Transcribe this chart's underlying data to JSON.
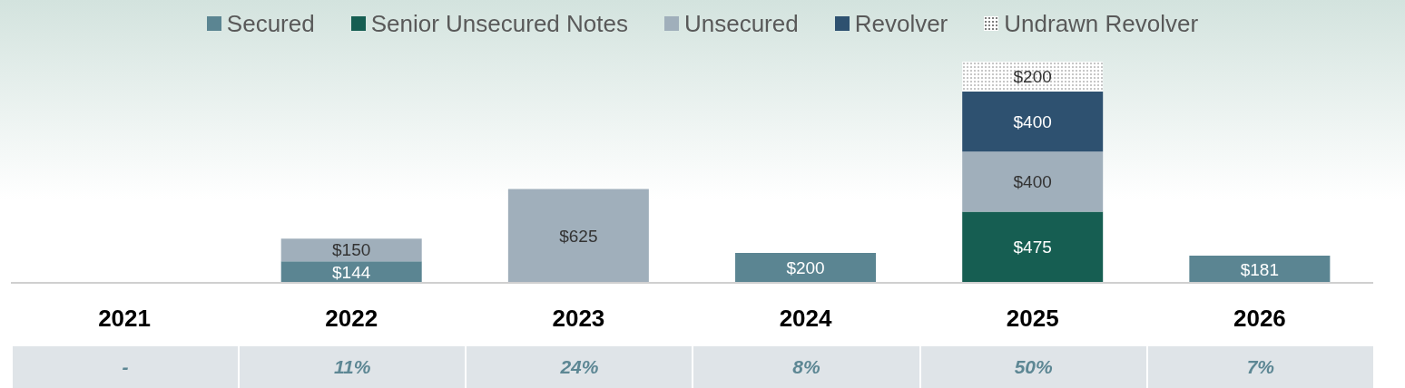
{
  "chart_data": {
    "type": "bar",
    "stacked": true,
    "categories": [
      "2021",
      "2022",
      "2023",
      "2024",
      "2025",
      "2026"
    ],
    "series": [
      {
        "name": "Secured",
        "color": "#5b8592",
        "values": [
          null,
          144,
          null,
          200,
          null,
          181
        ],
        "value_labels": [
          null,
          "$144",
          null,
          "$200",
          null,
          "$181"
        ]
      },
      {
        "name": "Senior Unsecured Notes",
        "color": "#165e52",
        "values": [
          null,
          null,
          null,
          null,
          475,
          null
        ],
        "value_labels": [
          null,
          null,
          null,
          null,
          "$475",
          null
        ]
      },
      {
        "name": "Unsecured",
        "color": "#a0afbb",
        "values": [
          null,
          150,
          625,
          null,
          400,
          null
        ],
        "value_labels": [
          null,
          "$150",
          "$625",
          null,
          "$400",
          null
        ]
      },
      {
        "name": "Revolver",
        "color": "#2e5170",
        "values": [
          null,
          null,
          null,
          null,
          400,
          null
        ],
        "value_labels": [
          null,
          null,
          null,
          null,
          "$400",
          null
        ]
      },
      {
        "name": "Undrawn Revolver",
        "color": "#7f7f7f",
        "values": [
          null,
          null,
          null,
          null,
          200,
          null
        ],
        "value_labels": [
          null,
          null,
          null,
          null,
          "$200",
          null
        ]
      }
    ],
    "annotations": [
      "-",
      "11%",
      "24%",
      "8%",
      "50%",
      "7%"
    ],
    "legend": "top"
  }
}
